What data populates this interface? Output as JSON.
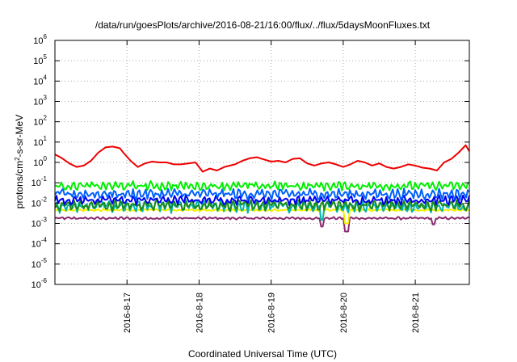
{
  "chart_data": {
    "type": "line",
    "title": "/data/run/goesPlots/archive/2016-08-21/16:00/flux/../flux/5daysMoonFluxes.txt",
    "xlabel": "Coordinated Universal Time (UTC)",
    "ylabel_main": "protons/cm",
    "ylabel_sup": "2",
    "ylabel_rest": "-s-sr-MeV",
    "y_scale": "log",
    "ylim_exp": [
      -6,
      6
    ],
    "y_ticks": [
      {
        "base": "10",
        "exp": "-6",
        "e": -6
      },
      {
        "base": "10",
        "exp": "-5",
        "e": -5
      },
      {
        "base": "10",
        "exp": "-4",
        "e": -4
      },
      {
        "base": "10",
        "exp": "-3",
        "e": -3
      },
      {
        "base": "10",
        "exp": "-2",
        "e": -2
      },
      {
        "base": "10",
        "exp": "-1",
        "e": -1
      },
      {
        "base": "10",
        "exp": "0",
        "e": 0
      },
      {
        "base": "10",
        "exp": "1",
        "e": 1
      },
      {
        "base": "10",
        "exp": "2",
        "e": 2
      },
      {
        "base": "10",
        "exp": "3",
        "e": 3
      },
      {
        "base": "10",
        "exp": "4",
        "e": 4
      },
      {
        "base": "10",
        "exp": "5",
        "e": 5
      },
      {
        "base": "10",
        "exp": "6",
        "e": 6
      }
    ],
    "x_range_days": [
      0,
      5.75
    ],
    "x_ticks": [
      {
        "label": "2016-8-17",
        "day": 1
      },
      {
        "label": "2016-8-18",
        "day": 2
      },
      {
        "label": "2016-8-19",
        "day": 3
      },
      {
        "label": "2016-8-20",
        "day": 4
      },
      {
        "label": "2016-8-21",
        "day": 5
      }
    ],
    "grid": true,
    "series": [
      {
        "color": "#8b2a6e",
        "level": 0.0018,
        "spread": 0.07,
        "dips": [
          [
            3.7,
            0.0007
          ],
          [
            4.05,
            0.0004
          ],
          [
            5.25,
            0.0009
          ]
        ]
      },
      {
        "color": "#f0f000",
        "level": 0.0045,
        "spread": 0.06,
        "dips": [
          [
            3.7,
            0.0015
          ],
          [
            4.05,
            0.001
          ]
        ]
      },
      {
        "color": "#00b4b4",
        "level": 0.007,
        "spread": 0.35,
        "dips": [
          [
            3.7,
            0.0015
          ]
        ]
      },
      {
        "color": "#1a8a1a",
        "level": 0.008,
        "spread": 0.3,
        "dips": []
      },
      {
        "color": "#0000ee",
        "level": 0.014,
        "spread": 0.25,
        "dips": []
      },
      {
        "color": "#0060ff",
        "level": 0.028,
        "spread": 0.3,
        "dips": []
      },
      {
        "color": "#00ee00",
        "level": 0.07,
        "spread": 0.25,
        "dips": []
      },
      {
        "color": "#ee0000",
        "points": [
          [
            0.0,
            2.5
          ],
          [
            0.1,
            1.6
          ],
          [
            0.2,
            0.9
          ],
          [
            0.3,
            0.6
          ],
          [
            0.4,
            0.7
          ],
          [
            0.5,
            1.2
          ],
          [
            0.6,
            3.0
          ],
          [
            0.7,
            5.5
          ],
          [
            0.8,
            6.0
          ],
          [
            0.9,
            5.0
          ],
          [
            0.95,
            3.0
          ],
          [
            1.05,
            1.2
          ],
          [
            1.15,
            0.6
          ],
          [
            1.25,
            0.9
          ],
          [
            1.35,
            1.1
          ],
          [
            1.45,
            1.0
          ],
          [
            1.55,
            1.0
          ],
          [
            1.65,
            0.8
          ],
          [
            1.75,
            0.8
          ],
          [
            1.85,
            0.9
          ],
          [
            1.95,
            1.0
          ],
          [
            2.05,
            0.35
          ],
          [
            2.15,
            0.5
          ],
          [
            2.25,
            0.4
          ],
          [
            2.35,
            0.6
          ],
          [
            2.5,
            0.8
          ],
          [
            2.6,
            1.2
          ],
          [
            2.7,
            1.6
          ],
          [
            2.8,
            1.8
          ],
          [
            2.9,
            1.4
          ],
          [
            3.0,
            1.1
          ],
          [
            3.1,
            1.2
          ],
          [
            3.2,
            1.0
          ],
          [
            3.3,
            1.5
          ],
          [
            3.4,
            1.6
          ],
          [
            3.5,
            0.9
          ],
          [
            3.6,
            0.7
          ],
          [
            3.7,
            0.9
          ],
          [
            3.8,
            1.0
          ],
          [
            3.9,
            0.8
          ],
          [
            4.0,
            0.6
          ],
          [
            4.1,
            0.8
          ],
          [
            4.2,
            1.2
          ],
          [
            4.3,
            1.0
          ],
          [
            4.4,
            0.7
          ],
          [
            4.5,
            0.9
          ],
          [
            4.6,
            0.6
          ],
          [
            4.7,
            0.5
          ],
          [
            4.8,
            0.6
          ],
          [
            4.9,
            0.8
          ],
          [
            5.0,
            0.7
          ],
          [
            5.1,
            0.55
          ],
          [
            5.2,
            0.5
          ],
          [
            5.3,
            0.4
          ],
          [
            5.4,
            1.0
          ],
          [
            5.5,
            1.5
          ],
          [
            5.6,
            3.0
          ],
          [
            5.7,
            7.0
          ],
          [
            5.75,
            3.5
          ]
        ]
      }
    ]
  }
}
